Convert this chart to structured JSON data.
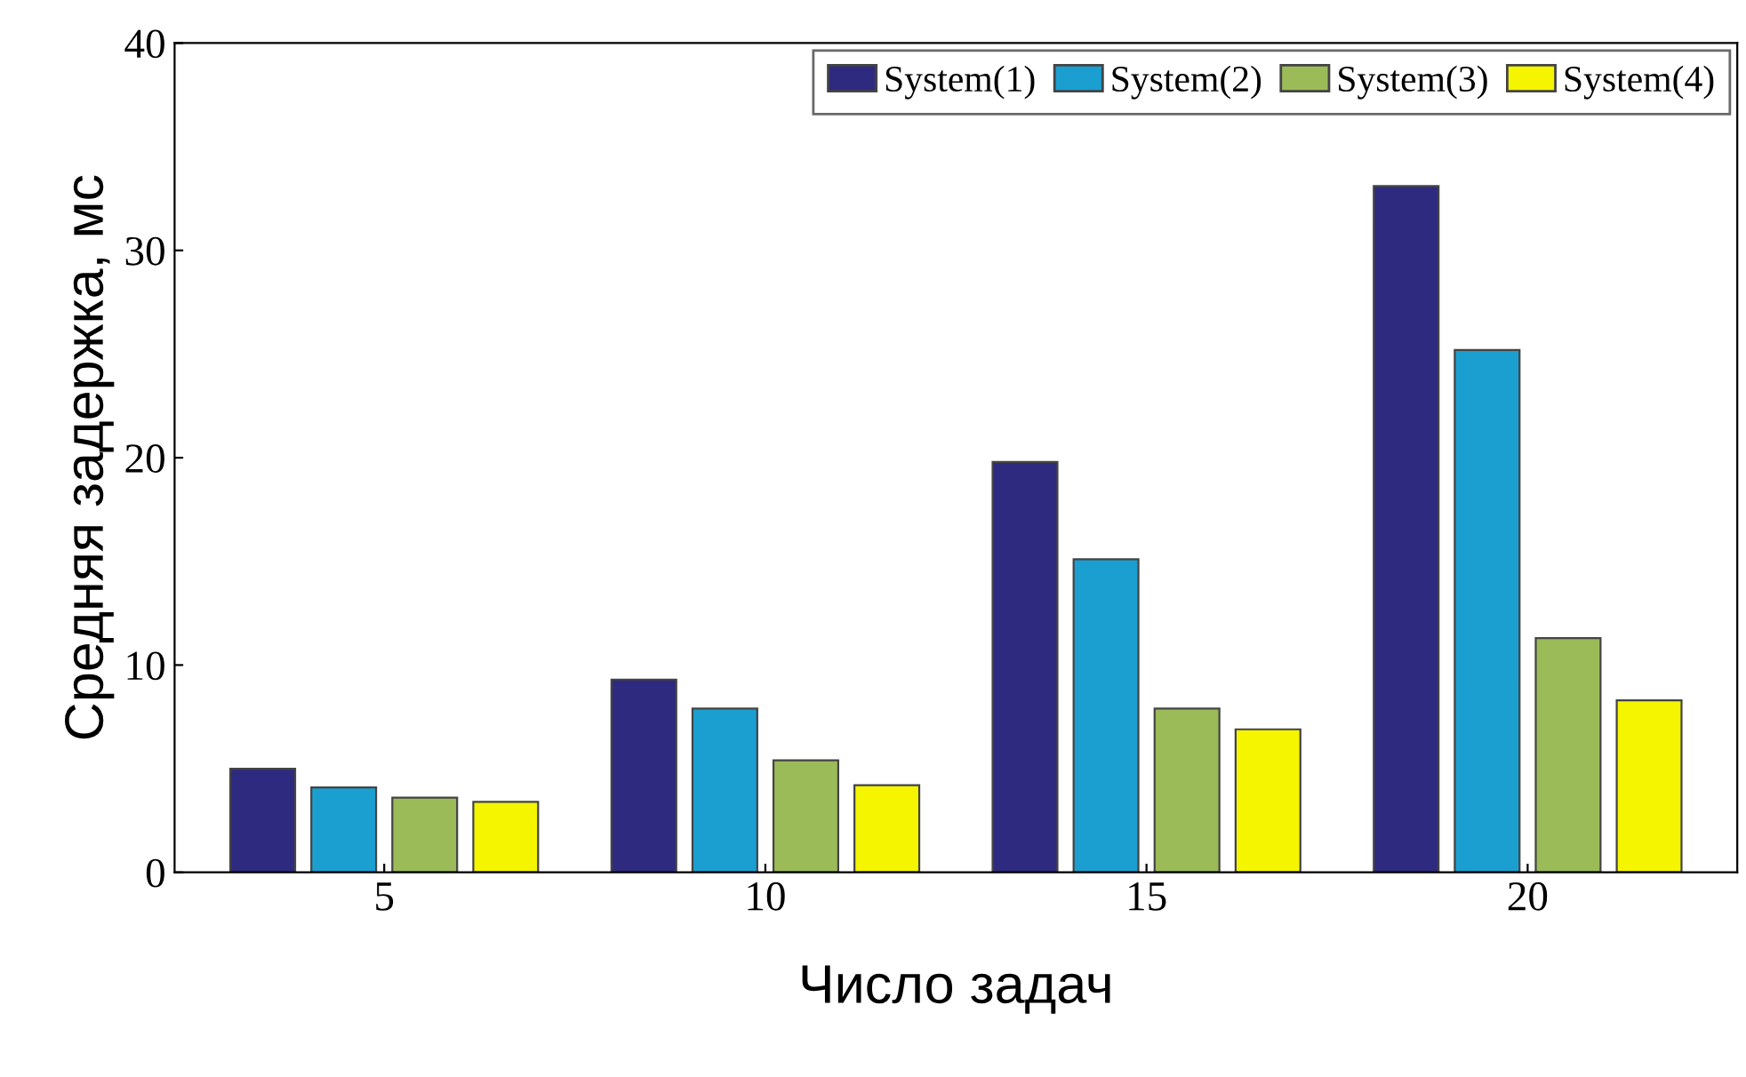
{
  "chart_data": {
    "type": "bar",
    "xlabel": "Число задач",
    "ylabel": "Средняя задержка, мс",
    "categories": [
      "5",
      "10",
      "15",
      "20"
    ],
    "series": [
      {
        "name": "System(1)",
        "color": "#2e2a80",
        "values": [
          5.0,
          9.3,
          19.8,
          33.1
        ]
      },
      {
        "name": "System(2)",
        "color": "#1a9fd0",
        "values": [
          4.1,
          7.9,
          15.1,
          25.2
        ]
      },
      {
        "name": "System(3)",
        "color": "#9bbb59",
        "values": [
          3.6,
          5.4,
          7.9,
          11.3
        ]
      },
      {
        "name": "System(4)",
        "color": "#f5f500",
        "values": [
          3.4,
          4.2,
          6.9,
          8.3
        ]
      }
    ],
    "ylim": [
      0,
      40
    ],
    "yticks": [
      0,
      10,
      20,
      30,
      40
    ],
    "grid": false,
    "legend": "top right"
  }
}
